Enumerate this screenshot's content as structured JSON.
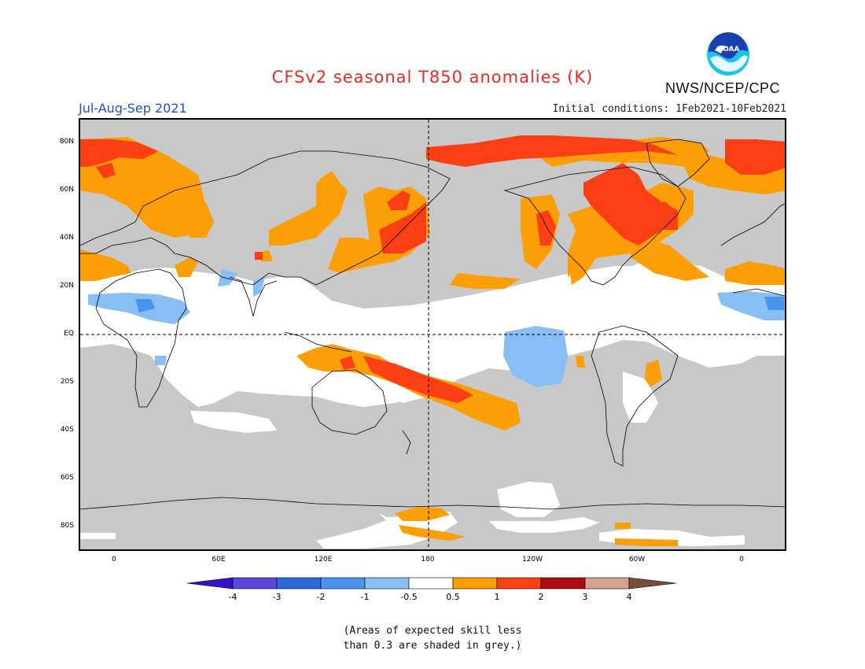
{
  "header": {
    "title": "CFSv2 seasonal T850 anomalies (K)",
    "season": "Jul-Aug-Sep 2021",
    "initial_conditions": "Initial conditions: 1Feb2021-10Feb2021",
    "agency": "NWS/NCEP/CPC",
    "logo_text": "NOAA"
  },
  "map": {
    "lat_labels": [
      "80N",
      "60N",
      "40N",
      "20N",
      "EQ",
      "20S",
      "40S",
      "60S",
      "80S"
    ],
    "lon_labels": [
      "0",
      "60E",
      "120E",
      "180",
      "120W",
      "60W",
      "0"
    ],
    "grey_meaning": "low-skill region"
  },
  "colorbar": {
    "labels": [
      "-4",
      "-3",
      "-2",
      "-1",
      "-0.5",
      "0.5",
      "1",
      "2",
      "3",
      "4"
    ],
    "colors": [
      "#3a10c8",
      "#5a48d8",
      "#2a68d8",
      "#4a94ee",
      "#88bef4",
      "#ffffff",
      "#fc9e06",
      "#fb3f14",
      "#b00d10",
      "#d4a38e",
      "#7a4c3c"
    ]
  },
  "footnote": {
    "line1": "(Areas of expected skill less",
    "line2": "than 0.3 are shaded in grey.)"
  }
}
